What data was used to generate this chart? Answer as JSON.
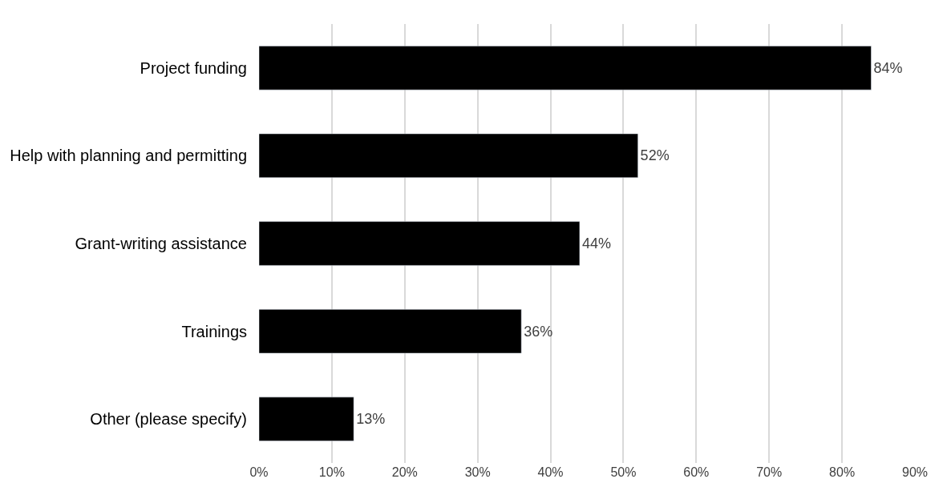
{
  "chart_data": {
    "type": "bar",
    "orientation": "horizontal",
    "categories": [
      "Project funding",
      "Help with planning and permitting",
      "Grant-writing assistance",
      "Trainings",
      "Other (please specify)"
    ],
    "values": [
      84,
      52,
      44,
      36,
      13
    ],
    "value_labels": [
      "84%",
      "52%",
      "44%",
      "36%",
      "13%"
    ],
    "color": "#000000",
    "xlim": [
      0,
      90
    ],
    "xticks": [
      {
        "value": 0,
        "label": "0%"
      },
      {
        "value": 10,
        "label": "10%"
      },
      {
        "value": 20,
        "label": "20%"
      },
      {
        "value": 30,
        "label": "30%"
      },
      {
        "value": 40,
        "label": "40%"
      },
      {
        "value": 50,
        "label": "50%"
      },
      {
        "value": 60,
        "label": "60%"
      },
      {
        "value": 70,
        "label": "70%"
      },
      {
        "value": 80,
        "label": "80%"
      },
      {
        "value": 90,
        "label": "90%"
      }
    ],
    "grid": "x"
  }
}
